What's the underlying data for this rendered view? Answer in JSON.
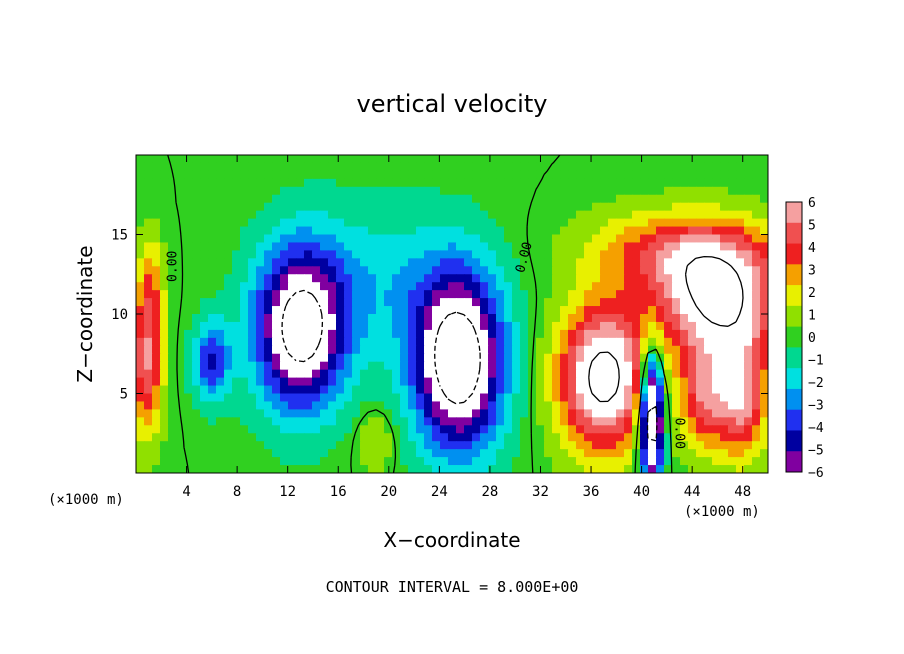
{
  "chart_data": {
    "type": "heatmap",
    "title": "vertical velocity",
    "xlabel": "X−coordinate",
    "ylabel": "Z−coordinate",
    "x_unit_left": "(×1000 m)",
    "x_unit_right": "(×1000 m)",
    "xlim": [
      0,
      50
    ],
    "ylim": [
      0,
      20
    ],
    "x_ticks": [
      4,
      8,
      12,
      16,
      20,
      24,
      28,
      32,
      36,
      40,
      44,
      48
    ],
    "y_ticks": [
      5,
      10,
      15
    ],
    "footer": "CONTOUR INTERVAL = 8.000E+00",
    "colorbar": {
      "min": -6,
      "max": 6,
      "labels": [
        "6",
        "5",
        "4",
        "3",
        "2",
        "1",
        "0",
        "−1",
        "−2",
        "−3",
        "−4",
        "−5",
        "−6"
      ],
      "levels": [
        {
          "value": 6,
          "color": "#f5a0a0"
        },
        {
          "value": 5,
          "color": "#f05050"
        },
        {
          "value": 4,
          "color": "#ee2020"
        },
        {
          "value": 3,
          "color": "#f5a000"
        },
        {
          "value": 2,
          "color": "#e8f000"
        },
        {
          "value": 1,
          "color": "#90e000"
        },
        {
          "value": 0,
          "color": "#30d020"
        },
        {
          "value": -1,
          "color": "#00d890"
        },
        {
          "value": -2,
          "color": "#00e0e0"
        },
        {
          "value": -3,
          "color": "#0090f0"
        },
        {
          "value": -4,
          "color": "#2030f0"
        },
        {
          "value": -5,
          "color": "#0000a0"
        },
        {
          "value": -6,
          "color": "#8000a0"
        }
      ]
    },
    "contour_labels": [
      "0.00",
      "0.00",
      "0.00"
    ],
    "features": [
      {
        "type": "updraft",
        "x": 0.8,
        "z": 7.0,
        "sx": 1.3,
        "sz": 4.5,
        "w": 5.5
      },
      {
        "type": "updraft",
        "x": 1.2,
        "z": 12.0,
        "sx": 1.0,
        "sz": 3.0,
        "w": 2.5
      },
      {
        "type": "downdraft",
        "x": 13.0,
        "z": 9.0,
        "sx": 3.5,
        "sz": 5.0,
        "w": -9.0
      },
      {
        "type": "downdraft",
        "x": 6.0,
        "z": 7.0,
        "sx": 1.5,
        "sz": 2.5,
        "w": -4.5
      },
      {
        "type": "downdraft",
        "x": 25.5,
        "z": 7.0,
        "sx": 3.5,
        "sz": 5.5,
        "w": -10.0
      },
      {
        "type": "downdraft",
        "x": 19.0,
        "z": 12.0,
        "sx": 7.0,
        "sz": 5.0,
        "w": -2.0
      },
      {
        "type": "updraft",
        "x": 37.0,
        "z": 6.0,
        "sx": 3.5,
        "sz": 4.5,
        "w": 9.0
      },
      {
        "type": "updraft",
        "x": 46.0,
        "z": 11.0,
        "sx": 5.0,
        "sz": 3.5,
        "w": 8.0
      },
      {
        "type": "updraft",
        "x": 43.0,
        "z": 14.0,
        "sx": 7.0,
        "sz": 2.5,
        "w": 4.0
      },
      {
        "type": "updraft",
        "x": 45.0,
        "z": 5.0,
        "sx": 2.0,
        "sz": 3.5,
        "w": 5.0
      },
      {
        "type": "updraft",
        "x": 48.0,
        "z": 5.0,
        "sx": 2.0,
        "sz": 4.0,
        "w": 6.0
      },
      {
        "type": "downdraft",
        "x": 40.8,
        "z": 3.5,
        "sx": 0.9,
        "sz": 4.0,
        "w": -12.0
      },
      {
        "type": "updraft",
        "x": 19.0,
        "z": 2.0,
        "sx": 1.5,
        "sz": 2.0,
        "w": 1.5
      }
    ]
  }
}
